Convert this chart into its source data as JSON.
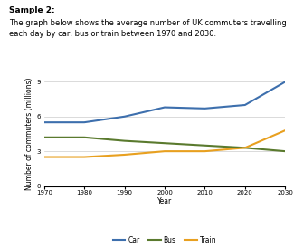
{
  "title_label": "Sample 2:",
  "description": "The graph below shows the average number of UK commuters travelling\neach day by car, bus or train between 1970 and 2030.",
  "years": [
    1970,
    1980,
    1990,
    2000,
    2010,
    2020,
    2030
  ],
  "car": [
    5.5,
    5.5,
    6.0,
    6.8,
    6.7,
    7.0,
    9.0
  ],
  "bus": [
    4.2,
    4.2,
    3.9,
    3.7,
    3.5,
    3.3,
    3.0
  ],
  "train": [
    2.5,
    2.5,
    2.7,
    3.0,
    3.0,
    3.3,
    4.8
  ],
  "car_color": "#3d6fad",
  "bus_color": "#5a7a2e",
  "train_color": "#e8a020",
  "xlabel": "Year",
  "ylabel": "Number of commuters (millions)",
  "ylim": [
    0,
    9
  ],
  "yticks": [
    0,
    3,
    6,
    9
  ],
  "xlim": [
    1970,
    2030
  ],
  "xticks": [
    1970,
    1980,
    1990,
    2000,
    2010,
    2020,
    2030
  ],
  "linewidth": 1.5,
  "grid_color": "#cccccc",
  "bg_color": "#ffffff",
  "title_fontsize": 6.5,
  "desc_fontsize": 6.0,
  "axis_label_fontsize": 5.5,
  "tick_fontsize": 5.0,
  "legend_fontsize": 5.5
}
